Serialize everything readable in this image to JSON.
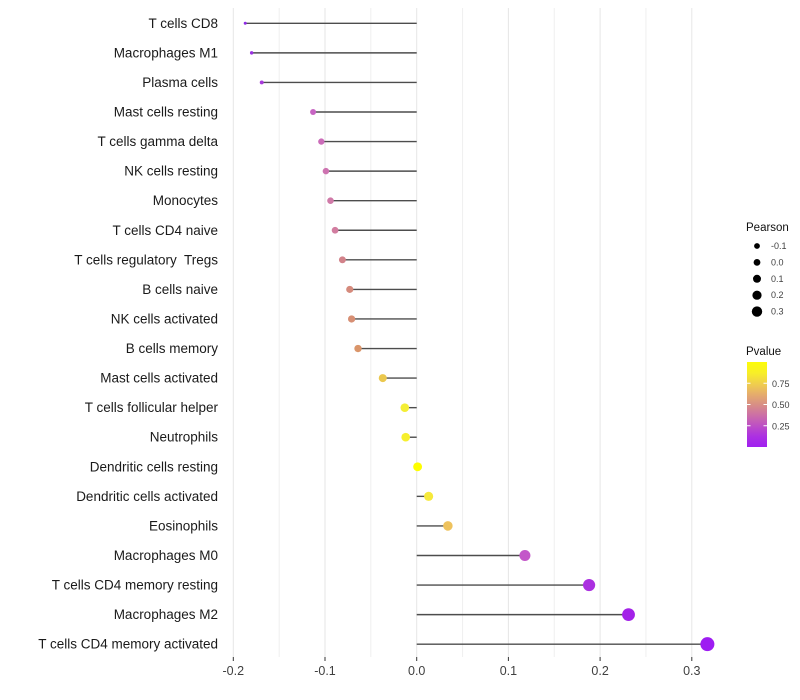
{
  "chart_data": {
    "type": "scatter",
    "style": "horizontal lollipop (dot + stem to zero)",
    "title": "",
    "xlabel": "",
    "ylabel": "",
    "categories": [
      "T cells CD8",
      "Macrophages M1",
      "Plasma cells",
      "Mast cells resting",
      "T cells gamma delta",
      "NK cells resting",
      "Monocytes",
      "T cells CD4 naive",
      "T cells regulatory  Tregs",
      "B cells naive",
      "NK cells activated",
      "B cells memory",
      "Mast cells activated",
      "T cells follicular helper",
      "Neutrophils",
      "Dendritic cells resting",
      "Dendritic cells activated",
      "Eosinophils",
      "Macrophages M0",
      "T cells CD4 memory resting",
      "Macrophages M2",
      "T cells CD4 memory activated"
    ],
    "series": [
      {
        "name": "Pearson",
        "values": [
          -0.187,
          -0.18,
          -0.169,
          -0.113,
          -0.104,
          -0.099,
          -0.094,
          -0.089,
          -0.081,
          -0.073,
          -0.071,
          -0.064,
          -0.037,
          -0.013,
          -0.012,
          0.001,
          0.013,
          0.034,
          0.118,
          0.188,
          0.231,
          0.317
        ]
      },
      {
        "name": "Pvalue (estimated from colorbar)",
        "values": [
          0.05,
          0.08,
          0.12,
          0.31,
          0.34,
          0.37,
          0.4,
          0.42,
          0.44,
          0.48,
          0.5,
          0.52,
          0.75,
          0.92,
          0.93,
          0.99,
          0.9,
          0.73,
          0.25,
          0.07,
          0.03,
          0.01
        ]
      }
    ],
    "point_colors": [
      "#8F2BE6",
      "#9A31E1",
      "#A83ADC",
      "#C765C3",
      "#CB6CB9",
      "#CD73B0",
      "#D07AA8",
      "#D27DA0",
      "#D2828A",
      "#D58A7C",
      "#D78F74",
      "#DA956A",
      "#EBC84E",
      "#F4EE35",
      "#F6EF2E",
      "#FEFE00",
      "#F6E93B",
      "#EEC25D",
      "#C357C9",
      "#AB30E0",
      "#A322E8",
      "#9E1CF2"
    ],
    "x_ticks": [
      -0.2,
      -0.1,
      0.0,
      0.1,
      0.2,
      0.3
    ],
    "x_tick_labels": [
      "-0.2",
      "-0.1",
      "0.0",
      "0.1",
      "0.2",
      "0.3"
    ],
    "xlim": [
      -0.225,
      0.352
    ],
    "grid": "vertical gridlines every 0.05 (light gray), no horizontal grid",
    "legend_position": "right"
  },
  "legend": {
    "pearson": {
      "title": "Pearson",
      "entries": [
        {
          "label": "-0.1",
          "value": -0.1
        },
        {
          "label": "0.0",
          "value": 0.0
        },
        {
          "label": "0.1",
          "value": 0.1
        },
        {
          "label": "0.2",
          "value": 0.2
        },
        {
          "label": "0.3",
          "value": 0.3
        }
      ]
    },
    "pvalue": {
      "title": "Pvalue",
      "tick_labels": [
        "0.75",
        "0.50",
        "0.25"
      ],
      "tick_values": [
        0.75,
        0.5,
        0.25
      ],
      "gradient_top_to_bottom": [
        "#FCFC09",
        "#F8EF27",
        "#F0D04B",
        "#E6AE6B",
        "#D88F85",
        "#CC6FA6",
        "#BD4FC5",
        "#AC30E2",
        "#A020F0"
      ]
    }
  },
  "colors": {
    "background": "#ffffff",
    "stem": "#4d4d4d",
    "gridline_major": "#e6e6e6",
    "gridline_minor": "#efefef",
    "axis_tick": "#333333",
    "axis_text": "#404040",
    "category_text": "#1a1a1a",
    "legend_title_text": "#111111",
    "legend_label_text": "#404040",
    "legend_dot": "#000000"
  }
}
